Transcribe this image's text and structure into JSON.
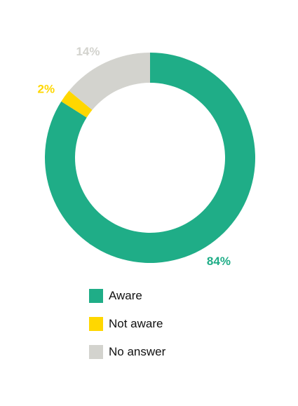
{
  "chart_data": {
    "type": "pie",
    "variant": "donut",
    "title": "",
    "slices": [
      {
        "name": "Aware",
        "value": 84,
        "label": "84%",
        "color": "#1fad87"
      },
      {
        "name": "Not aware",
        "value": 2,
        "label": "2%",
        "color": "#ffd700"
      },
      {
        "name": "No answer",
        "value": 14,
        "label": "14%",
        "color": "#d3d3ce"
      }
    ],
    "legend_position": "bottom",
    "start_angle": "top (12 o'clock), clockwise"
  },
  "legend": {
    "items": [
      {
        "label": "Aware",
        "color": "#1fad87"
      },
      {
        "label": "Not aware",
        "color": "#ffd700"
      },
      {
        "label": "No answer",
        "color": "#d3d3ce"
      }
    ]
  }
}
